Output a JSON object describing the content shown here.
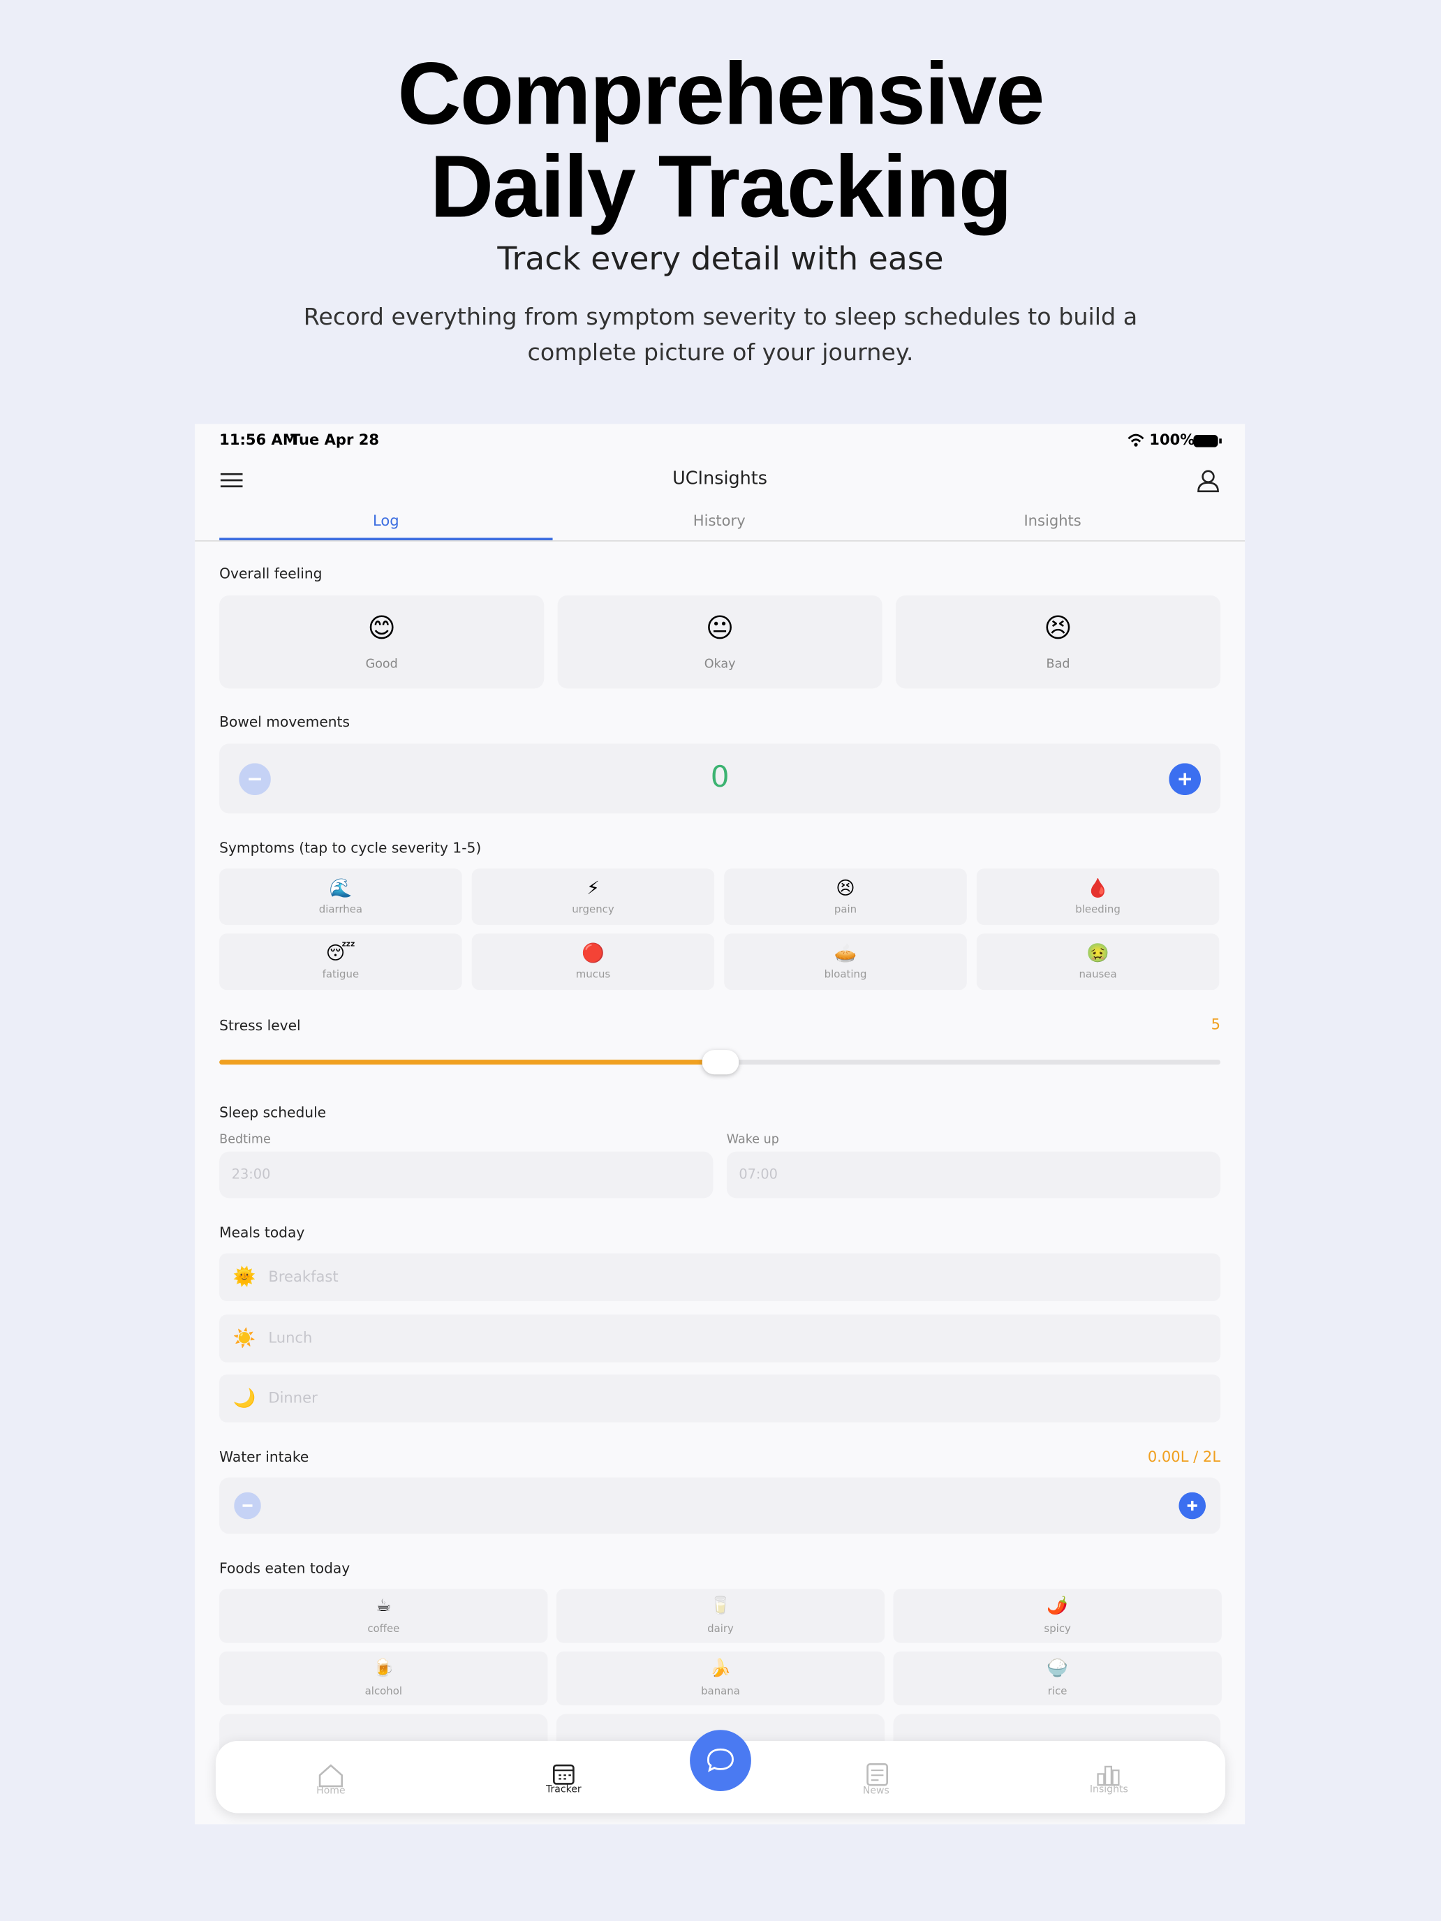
{
  "header": {
    "title_lines": [
      "Comprehensive",
      "Daily Tracking"
    ],
    "subtitle": "Track every detail with ease",
    "description_lines": [
      "Record everything from symptom severity to sleep schedules to build a",
      "complete picture of your journey."
    ]
  },
  "status_bar": {
    "time": "11:56 AM",
    "date": "Tue Apr 28",
    "battery": "100%"
  },
  "app": {
    "title": "UCInsights",
    "tabs": [
      "Log",
      "History",
      "Insights"
    ]
  },
  "overall_feeling": {
    "label": "Overall feeling",
    "options": [
      {
        "icon": "😊",
        "label": "Good"
      },
      {
        "icon": "😐",
        "label": "Okay"
      },
      {
        "icon": "😣",
        "label": "Bad"
      }
    ]
  },
  "bowel_movements": {
    "label": "Bowel movements",
    "count": 0
  },
  "symptoms": {
    "label": "Symptoms (tap to cycle severity 1-5)",
    "items": [
      {
        "icon": "🌊",
        "label": "diarrhea"
      },
      {
        "icon": "⚡",
        "label": "urgency"
      },
      {
        "icon": "😣",
        "label": "pain"
      },
      {
        "icon": "🩸",
        "label": "bleeding"
      },
      {
        "icon": "😴",
        "label": "fatigue"
      },
      {
        "icon": "🔴",
        "label": "mucus"
      },
      {
        "icon": "🥧",
        "label": "bloating"
      },
      {
        "icon": "🤢",
        "label": "nausea"
      }
    ]
  },
  "stress": {
    "label": "Stress level",
    "value": 5
  },
  "sleep": {
    "label": "Sleep schedule",
    "bedtime_label": "Bedtime",
    "bedtime_placeholder": "23:00",
    "wake_label": "Wake up",
    "wake_placeholder": "07:00"
  },
  "meals": {
    "label": "Meals today",
    "items": [
      {
        "icon": "🌞",
        "label": "Breakfast"
      },
      {
        "icon": "☀️",
        "label": "Lunch"
      },
      {
        "icon": "🌙",
        "label": "Dinner"
      }
    ]
  },
  "water": {
    "label": "Water intake",
    "value_label": "0.00L / 2L"
  },
  "foods": {
    "label": "Foods eaten today",
    "items": [
      {
        "icon": "☕",
        "label": "coffee"
      },
      {
        "icon": "🥛",
        "label": "dairy"
      },
      {
        "icon": "🌶️",
        "label": "spicy"
      },
      {
        "icon": "🍺",
        "label": "alcohol"
      },
      {
        "icon": "🍌",
        "label": "banana"
      },
      {
        "icon": "🍚",
        "label": "rice"
      }
    ]
  },
  "nav": {
    "items": [
      "Home",
      "Tracker",
      "News",
      "Insights"
    ]
  }
}
